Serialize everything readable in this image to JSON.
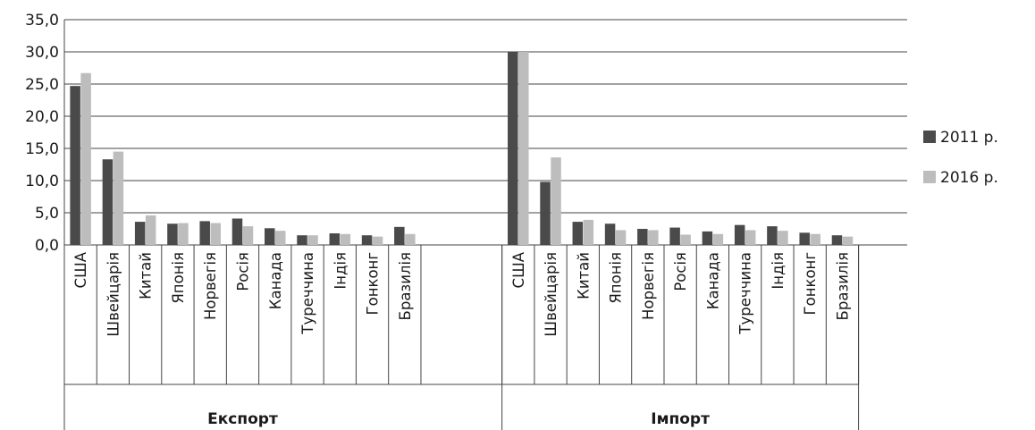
{
  "chart_data": {
    "type": "bar",
    "groups": [
      {
        "label": "Експорт",
        "categories": [
          "США",
          "Швейцарія",
          "Китай",
          "Японія",
          "Норвегія",
          "Росія",
          "Канада",
          "Туреччина",
          "Індія",
          "Гонконг",
          "Бразилія"
        ]
      },
      {
        "label": "Імпорт",
        "categories": [
          "США",
          "Швейцарія",
          "Китай",
          "Японія",
          "Норвегія",
          "Росія",
          "Канада",
          "Туреччина",
          "Індія",
          "Гонконг",
          "Бразилія"
        ]
      }
    ],
    "series": [
      {
        "name": "2011 р.",
        "color": "#4a4a4a",
        "values": [
          24.7,
          13.3,
          3.6,
          3.3,
          3.7,
          4.1,
          2.6,
          1.5,
          1.8,
          1.5,
          2.8,
          30.0,
          9.8,
          3.6,
          3.3,
          2.5,
          2.7,
          2.1,
          3.1,
          2.9,
          1.9,
          1.5
        ]
      },
      {
        "name": "2016 р.",
        "color": "#bdbdbd",
        "values": [
          26.7,
          14.5,
          4.6,
          3.4,
          3.4,
          2.9,
          2.2,
          1.5,
          1.7,
          1.3,
          1.7,
          30.0,
          13.6,
          3.9,
          2.3,
          2.3,
          1.6,
          1.7,
          2.3,
          2.2,
          1.7,
          1.3
        ]
      }
    ],
    "y_ticks": [
      "0,0",
      "5,0",
      "10,0",
      "15,0",
      "20,0",
      "25,0",
      "30,0",
      "35,0"
    ],
    "ylim": [
      0,
      35
    ],
    "grid": true,
    "legend_position": "right"
  }
}
